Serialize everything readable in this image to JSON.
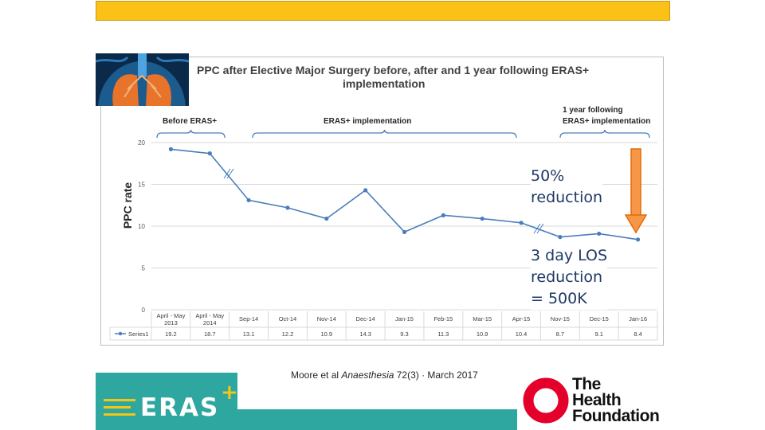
{
  "slide": {
    "citation_author": "Moore et al ",
    "citation_journal": "Anaesthesia",
    "citation_rest": " 72(3) · March 2017",
    "annotation_reduction": [
      "50%",
      "reduction"
    ],
    "annotation_los": [
      "3 day LOS",
      "reduction",
      "= 500K"
    ],
    "eras_logo_text": "ERAS",
    "eras_logo_plus": "+",
    "hf_logo_lines": [
      "The",
      "Health",
      "Foundation"
    ]
  },
  "chart_data": {
    "type": "line",
    "title_line1": "PPC after Elective Major Surgery before, after and 1 year following ERAS+",
    "title_line2": "implementation",
    "ylabel": "PPC rate",
    "ylim": [
      0,
      20
    ],
    "yticks": [
      "0",
      "5",
      "10",
      "15",
      "20"
    ],
    "grid": true,
    "phases": {
      "before": "Before ERAS+",
      "implementation": "ERAS+ implementation",
      "after_line1": "1 year following",
      "after_line2": "ERAS+ implementation"
    },
    "categories": [
      [
        "April - May",
        "2013"
      ],
      [
        "April - May",
        "2014"
      ],
      [
        "Sep-14"
      ],
      [
        "Oct-14"
      ],
      [
        "Nov-14"
      ],
      [
        "Dec-14"
      ],
      [
        "Jan-15"
      ],
      [
        "Feb-15"
      ],
      [
        "Mar-15"
      ],
      [
        "Apr-15"
      ],
      [
        "Nov-15"
      ],
      [
        "Dec-15"
      ],
      [
        "Jan-16"
      ]
    ],
    "series": [
      {
        "name": "Series1",
        "values": [
          19.2,
          18.7,
          13.1,
          12.2,
          10.9,
          14.3,
          9.3,
          11.3,
          10.9,
          10.4,
          8.7,
          9.1,
          8.4
        ],
        "labels": [
          "19.2",
          "18.7",
          "13.1",
          "12.2",
          "10.9",
          "14.3",
          "9.3",
          "11.3",
          "10.9",
          "10.4",
          "8.7",
          "9.1",
          "8.4"
        ]
      }
    ],
    "colors": {
      "line": "#4a7ebb",
      "grid": "#d9d9d9",
      "arrow_fill": "#f79646",
      "arrow_stroke": "#e36c09",
      "brace": "#4a7ebb"
    }
  }
}
